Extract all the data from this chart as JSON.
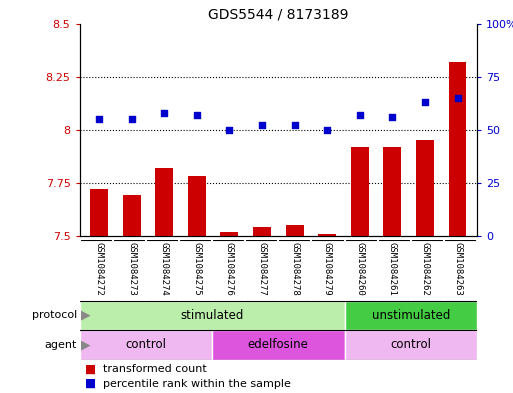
{
  "title": "GDS5544 / 8173189",
  "samples": [
    "GSM1084272",
    "GSM1084273",
    "GSM1084274",
    "GSM1084275",
    "GSM1084276",
    "GSM1084277",
    "GSM1084278",
    "GSM1084279",
    "GSM1084260",
    "GSM1084261",
    "GSM1084262",
    "GSM1084263"
  ],
  "bar_values": [
    7.72,
    7.69,
    7.82,
    7.78,
    7.52,
    7.54,
    7.55,
    7.51,
    7.92,
    7.92,
    7.95,
    8.32
  ],
  "bar_baseline": 7.5,
  "blue_values": [
    55,
    55,
    58,
    57,
    50,
    52,
    52,
    50,
    57,
    56,
    63,
    65
  ],
  "ylim_left": [
    7.5,
    8.5
  ],
  "ylim_right": [
    0,
    100
  ],
  "yticks_left": [
    7.5,
    7.75,
    8.0,
    8.25,
    8.5
  ],
  "ytick_labels_left": [
    "7.5",
    "7.75",
    "8",
    "8.25",
    "8.5"
  ],
  "yticks_right": [
    0,
    25,
    50,
    75,
    100
  ],
  "ytick_labels_right": [
    "0",
    "25",
    "50",
    "75",
    "100%"
  ],
  "bar_color": "#cc0000",
  "dot_color": "#0000cc",
  "protocol_groups": [
    {
      "label": "stimulated",
      "start": 0,
      "end": 8,
      "color": "#bbeeaa"
    },
    {
      "label": "unstimulated",
      "start": 8,
      "end": 12,
      "color": "#44cc44"
    }
  ],
  "agent_groups": [
    {
      "label": "control",
      "start": 0,
      "end": 4,
      "color": "#f0b8f0"
    },
    {
      "label": "edelfosine",
      "start": 4,
      "end": 8,
      "color": "#dd55dd"
    },
    {
      "label": "control",
      "start": 8,
      "end": 12,
      "color": "#f0b8f0"
    }
  ],
  "legend_bar_label": "transformed count",
  "legend_dot_label": "percentile rank within the sample",
  "bg_color": "#ffffff",
  "grid_color": "#000000",
  "sample_bg_color": "#cccccc",
  "sample_border_color": "#ffffff"
}
